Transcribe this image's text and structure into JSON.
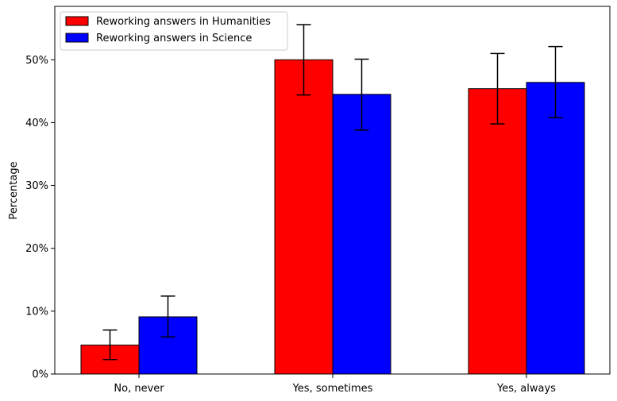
{
  "chart_data": {
    "type": "bar",
    "categories": [
      "No, never",
      "Yes, sometimes",
      "Yes, always"
    ],
    "ylabel": "Percentage",
    "ylim": [
      0,
      58.5
    ],
    "yticks": [
      0,
      10,
      20,
      30,
      40,
      50
    ],
    "ytick_labels": [
      "0%",
      "10%",
      "20%",
      "30%",
      "40%",
      "50%"
    ],
    "grid": false,
    "legend_position": "top-left",
    "series": [
      {
        "name": "Reworking answers in Humanities",
        "color": "#ff0000",
        "values": [
          4.6,
          50.0,
          45.4
        ],
        "err_low": [
          2.3,
          44.4,
          39.8
        ],
        "err_high": [
          7.0,
          55.6,
          51.0
        ]
      },
      {
        "name": "Reworking answers in Science",
        "color": "#0000ff",
        "values": [
          9.1,
          44.5,
          46.4
        ],
        "err_low": [
          5.9,
          38.8,
          40.8
        ],
        "err_high": [
          12.4,
          50.1,
          52.1
        ]
      }
    ]
  }
}
